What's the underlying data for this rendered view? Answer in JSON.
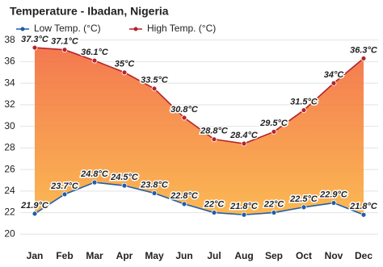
{
  "chart_data": {
    "type": "line",
    "title": "Temperature - Ibadan, Nigeria",
    "categories": [
      "Jan",
      "Feb",
      "Mar",
      "Apr",
      "May",
      "Jun",
      "Jul",
      "Aug",
      "Sep",
      "Oct",
      "Nov",
      "Dec"
    ],
    "series": [
      {
        "name": "Low Temp. (°C)",
        "color": "#1f5ea8",
        "values": [
          21.9,
          23.7,
          24.8,
          24.5,
          23.8,
          22.8,
          22,
          21.8,
          22,
          22.5,
          22.9,
          21.8
        ],
        "value_labels": [
          "21.9°C",
          "23.7°C",
          "24.8°C",
          "24.5°C",
          "23.8°C",
          "22.8°C",
          "22°C",
          "21.8°C",
          "22°C",
          "22.5°C",
          "22.9°C",
          "21.8°C"
        ]
      },
      {
        "name": "High Temp. (°C)",
        "color": "#b5232b",
        "values": [
          37.3,
          37.1,
          36.1,
          35,
          33.5,
          30.8,
          28.8,
          28.4,
          29.5,
          31.5,
          34,
          36.3
        ],
        "value_labels": [
          "37.3°C",
          "37.1°C",
          "36.1°C",
          "35°C",
          "33.5°C",
          "30.8°C",
          "28.8°C",
          "28.4°C",
          "29.5°C",
          "31.5°C",
          "34°C",
          "36.3°C"
        ]
      }
    ],
    "ylim": [
      19.2,
      38.5
    ],
    "yticks": [
      20,
      22,
      24,
      26,
      28,
      30,
      32,
      34,
      36,
      38
    ],
    "grid": true
  }
}
